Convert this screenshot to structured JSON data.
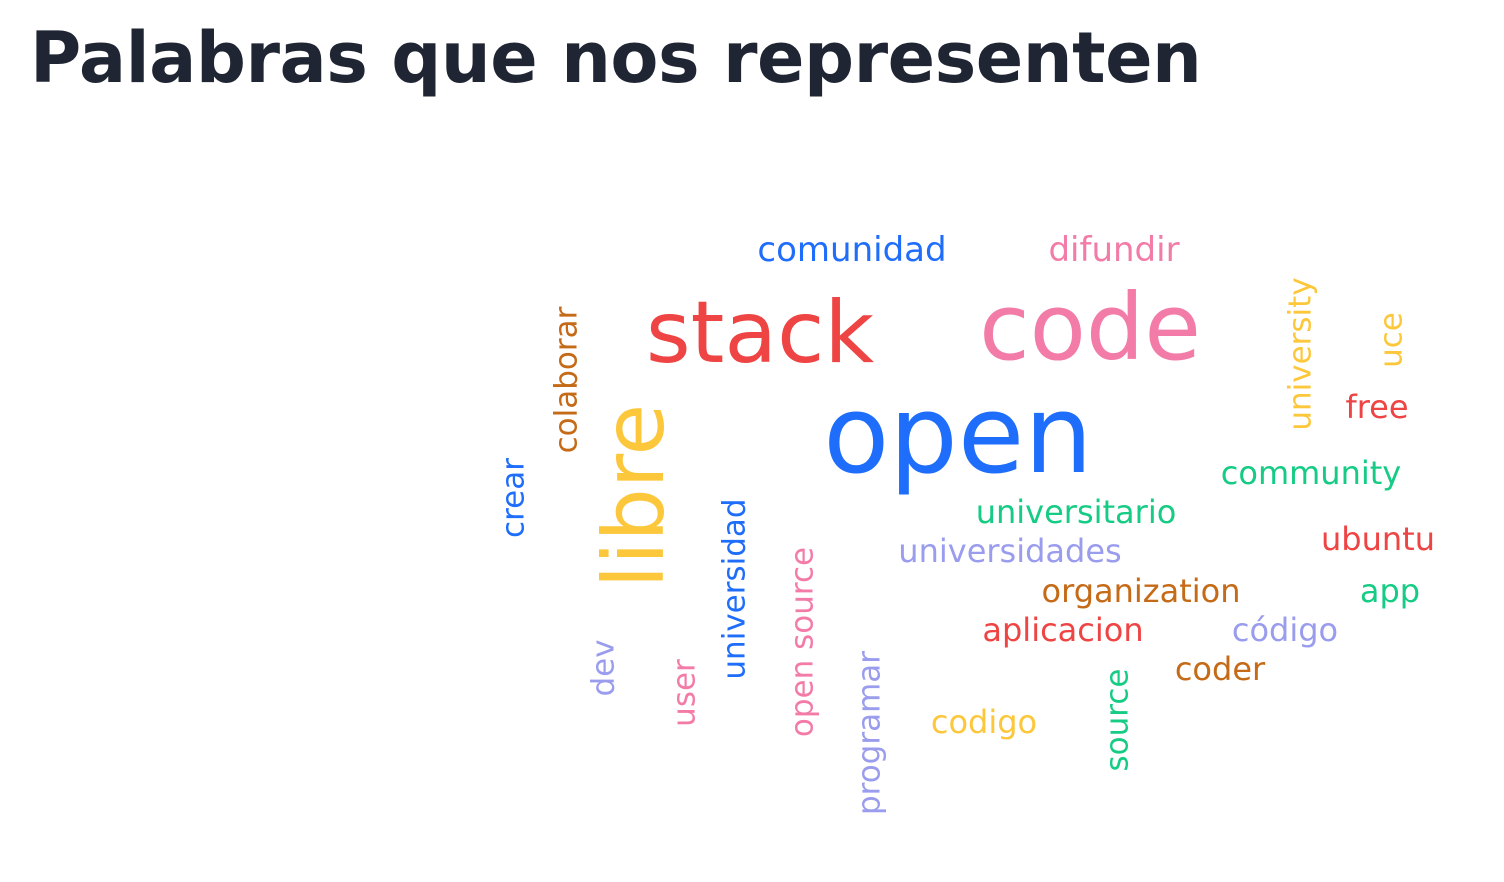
{
  "title": "Palabras que nos representen",
  "colors": {
    "title": "#1f2533",
    "blue": "#1f6dfb",
    "pink": "#f37ba8",
    "red": "#ef4444",
    "yellow": "#fcc73b",
    "brown": "#c56a17",
    "green": "#16cc85",
    "lavender": "#9a9ced"
  },
  "words": {
    "open": "open",
    "code": "code",
    "stack": "stack",
    "libre": "libre",
    "comunidad": "comunidad",
    "difundir": "difundir",
    "colaborar": "colaborar",
    "university": "university",
    "uce": "uce",
    "free": "free",
    "crear": "crear",
    "community": "community",
    "universitario": "universitario",
    "universidades": "universidades",
    "ubuntu": "ubuntu",
    "universidad": "universidad",
    "open_source": "open source",
    "organization": "organization",
    "app": "app",
    "aplicacion": "aplicacion",
    "codigo_accent": "código",
    "coder": "coder",
    "dev": "dev",
    "user": "user",
    "programar": "programar",
    "codigo": "codigo",
    "source": "source"
  }
}
